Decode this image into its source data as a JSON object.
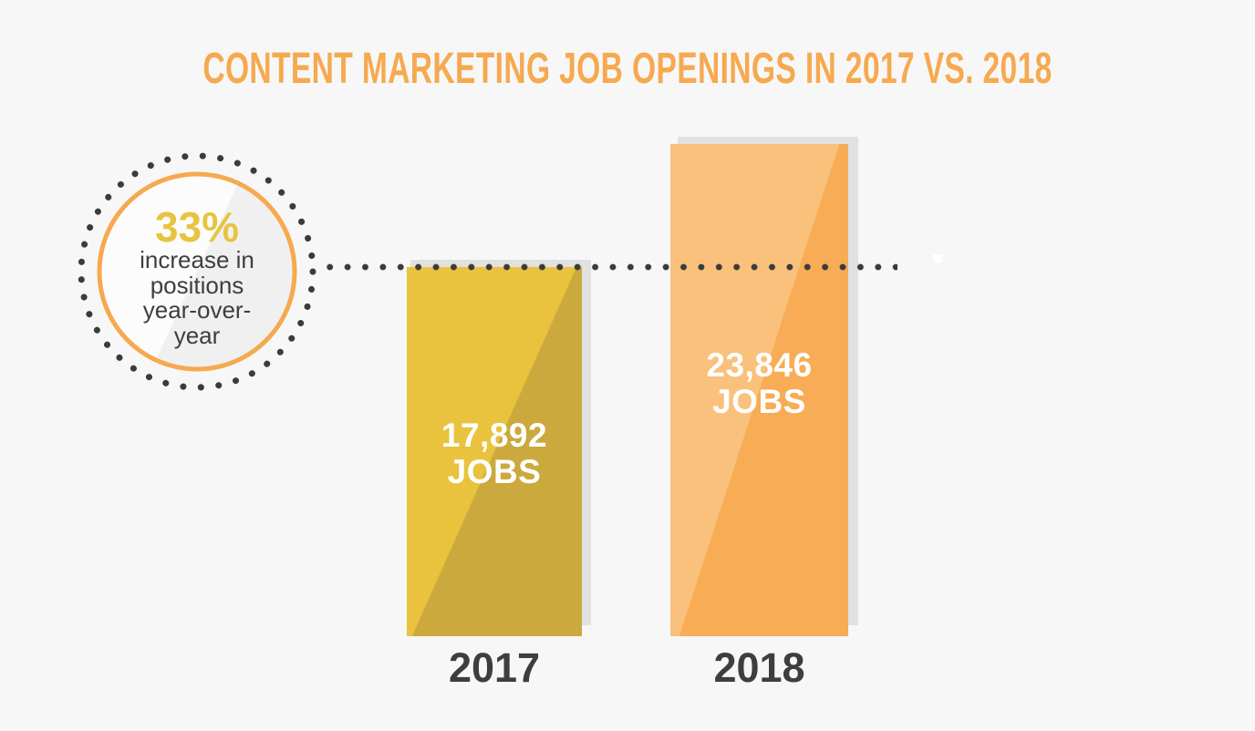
{
  "page": {
    "background_color": "#f7f7f7"
  },
  "chart_data": {
    "type": "bar",
    "title": "CONTENT MARKETING JOB OPENINGS IN 2017 VS. 2018",
    "categories": [
      "2017",
      "2018"
    ],
    "values": [
      17892,
      23846
    ],
    "bar_value_labels": [
      [
        "17,892",
        "JOBS"
      ],
      [
        "23,846",
        "JOBS"
      ]
    ],
    "ylim": [
      0,
      23846
    ],
    "grid": false,
    "legend": false,
    "annotation": {
      "value": "33%",
      "lines": [
        "increase in",
        "positions",
        "year-over-",
        "year"
      ],
      "full_text": "33% increase in positions year-over-year",
      "connector": "dotted-line-at-2017-bar-top"
    },
    "colors": {
      "title": "#f6a94f",
      "bar_2017_light": "#e9c33e",
      "bar_2017_dark": "#cba93c",
      "bar_2018_light": "#f9c17c",
      "bar_2018_dark": "#f7ac55",
      "bar_label_text": "#ffffff",
      "year_label_text": "#3e3e3e",
      "bar_shadow": "#e1e1e1",
      "dots": "#3b3b3b",
      "badge_ring_orange": "#f6a94f",
      "badge_value_yellow": "#e7c440",
      "badge_text": "#3e3e3e",
      "badge_fill_light": "#fcfcfc",
      "badge_fill_dark": "#f0f0f0"
    }
  }
}
